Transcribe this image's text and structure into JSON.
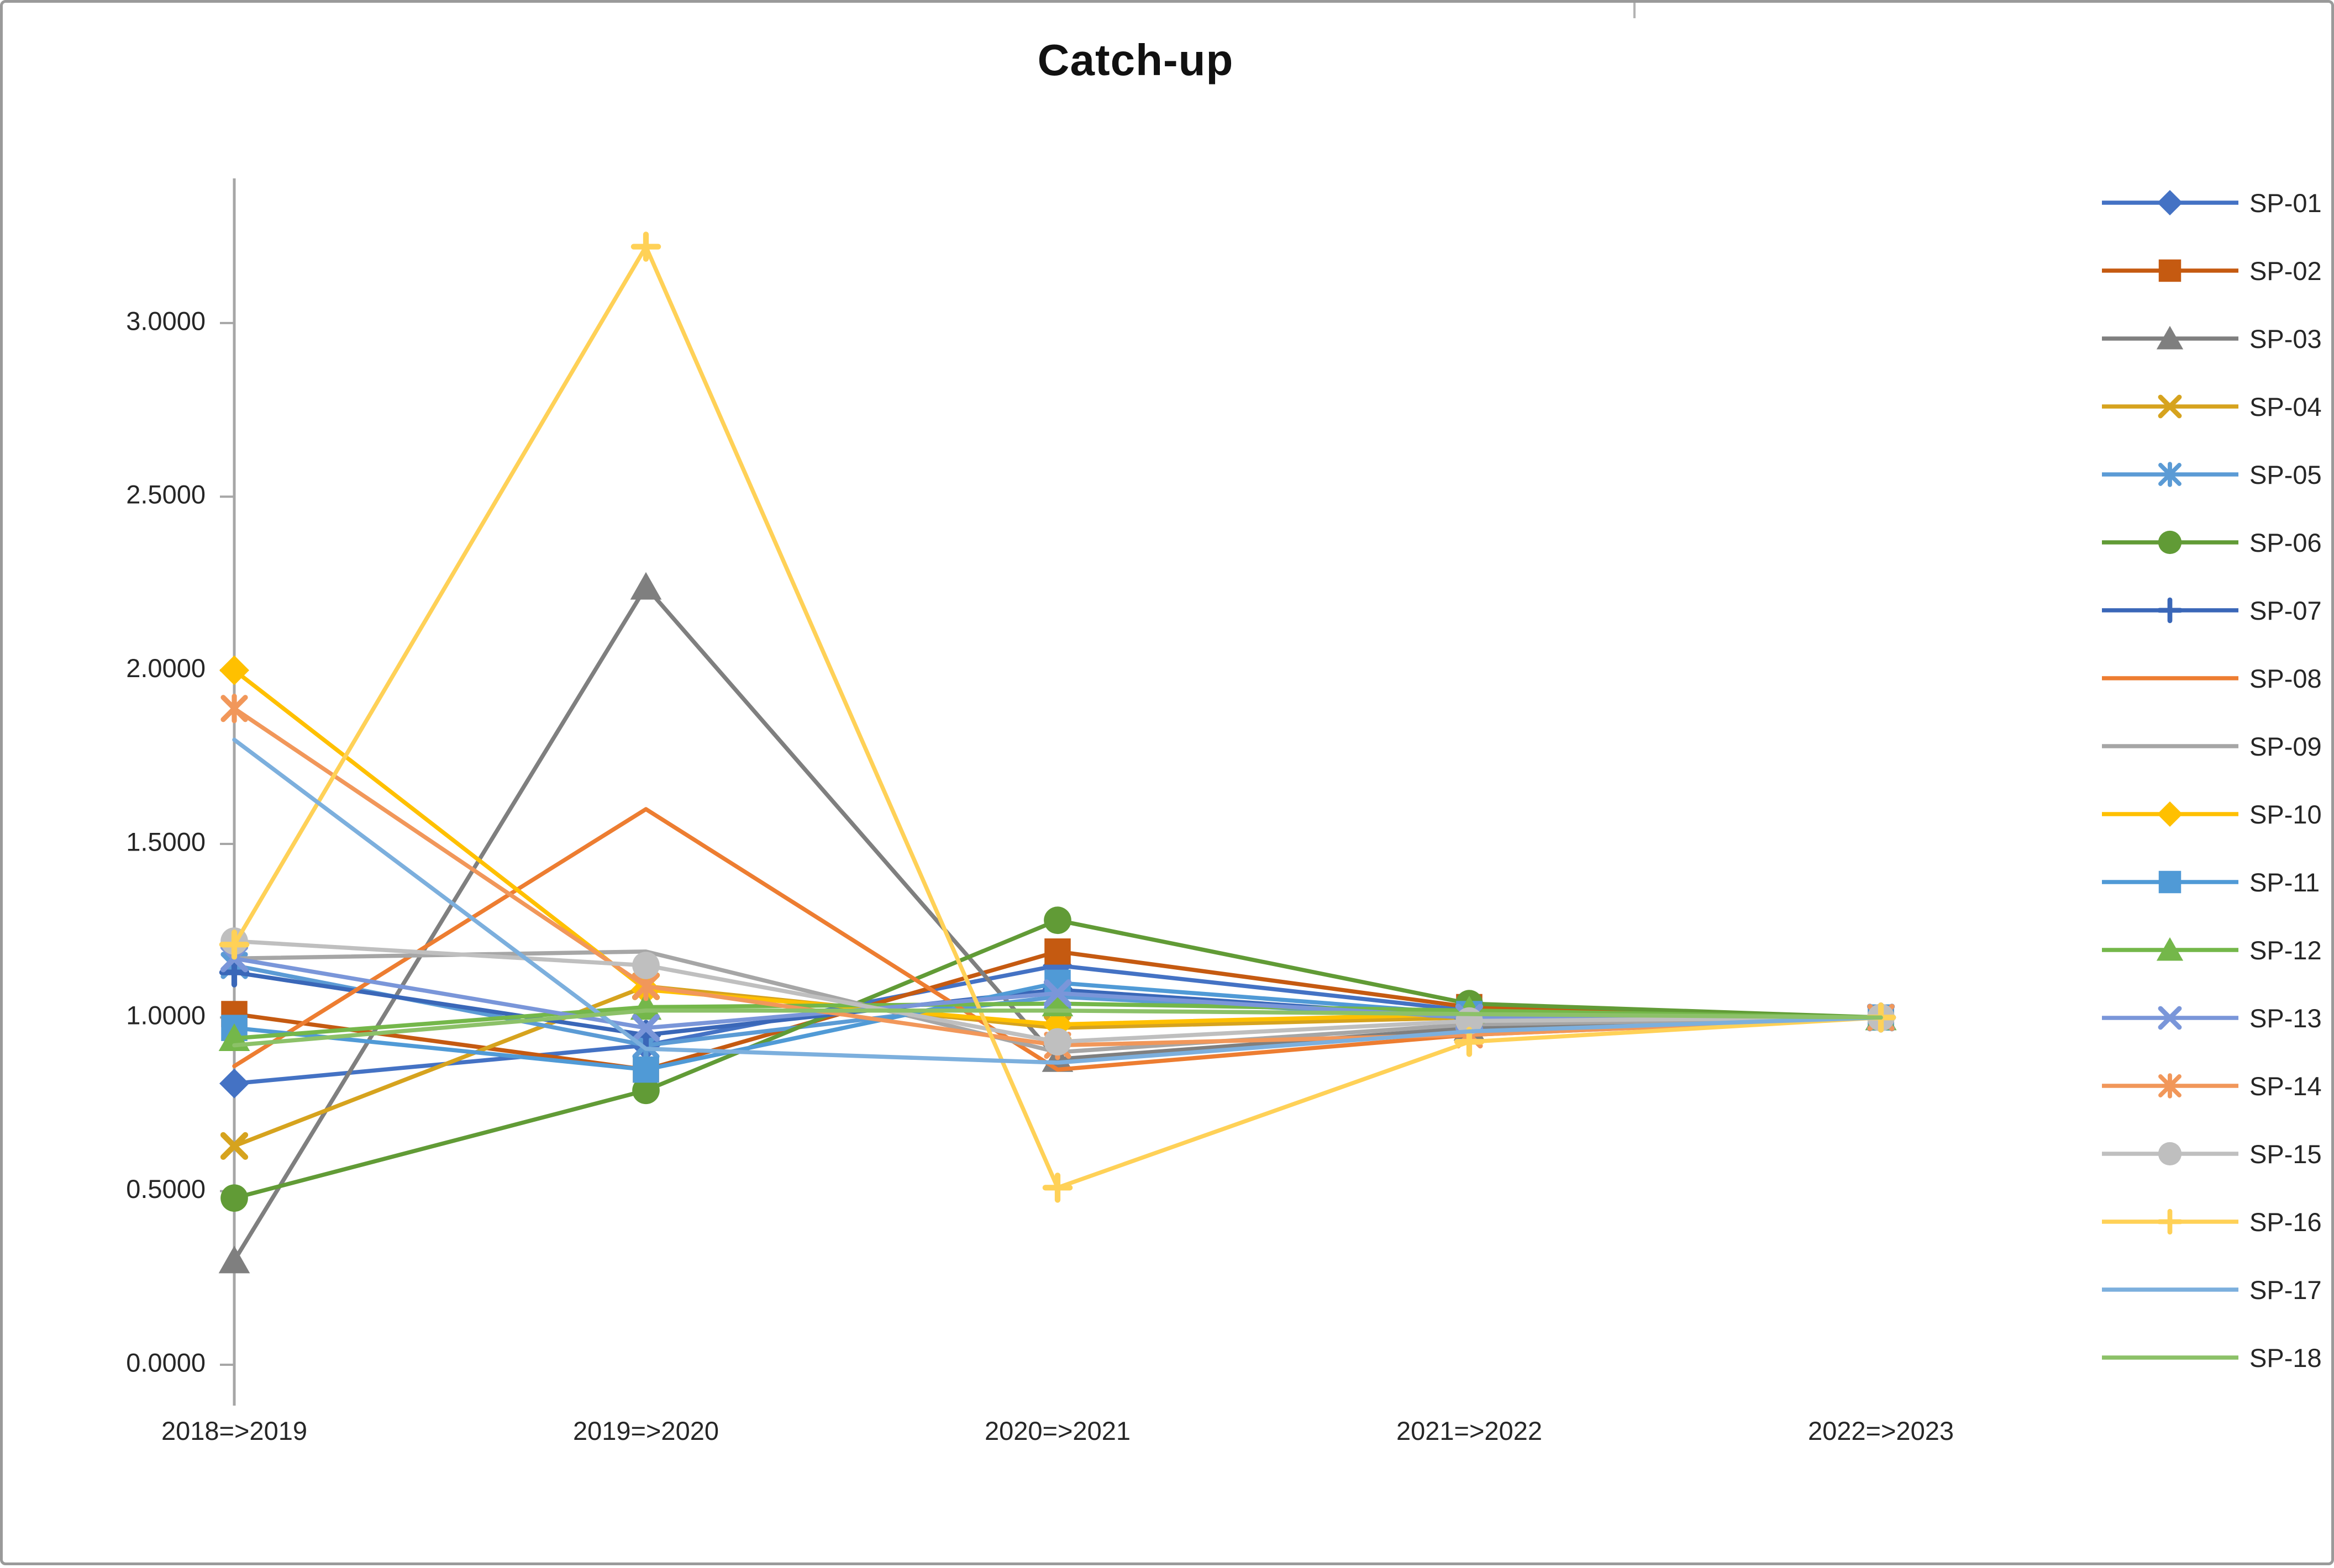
{
  "title": "Catch-up",
  "chart_data": {
    "type": "line",
    "title": "Catch-up",
    "xlabel": "",
    "ylabel": "",
    "categories": [
      "2018=>2019",
      "2019=>2020",
      "2020=>2021",
      "2021=>2022",
      "2022=>2023"
    ],
    "y_tick_labels": [
      "0.0000",
      "0.5000",
      "1.0000",
      "1.5000",
      "2.0000",
      "2.5000",
      "3.0000"
    ],
    "y_tick_values": [
      0,
      0.5,
      1.0,
      1.5,
      2.0,
      2.5,
      3.0
    ],
    "ylim": [
      0,
      3.4
    ],
    "grid": false,
    "legend_position": "right",
    "axis_color": "#a6a6a6",
    "text_color": "#262626",
    "series": [
      {
        "name": "SP-01",
        "color": "#4472C4",
        "marker": "diamond",
        "values": [
          0.81,
          0.92,
          1.15,
          1.02,
          1.0
        ]
      },
      {
        "name": "SP-02",
        "color": "#C55A11",
        "marker": "square",
        "values": [
          1.01,
          0.85,
          1.19,
          1.03,
          1.0
        ]
      },
      {
        "name": "SP-03",
        "color": "#7F7F7F",
        "marker": "triangle",
        "values": [
          0.3,
          2.24,
          0.88,
          0.97,
          1.0
        ]
      },
      {
        "name": "SP-04",
        "color": "#D6A31E",
        "marker": "x",
        "values": [
          0.63,
          1.09,
          0.97,
          1.0,
          1.0
        ]
      },
      {
        "name": "SP-05",
        "color": "#5B9BD5",
        "marker": "asterisk",
        "values": [
          1.15,
          0.92,
          1.06,
          1.0,
          1.0
        ]
      },
      {
        "name": "SP-06",
        "color": "#619B36",
        "marker": "circle",
        "values": [
          0.48,
          0.79,
          1.28,
          1.04,
          1.0
        ]
      },
      {
        "name": "SP-07",
        "color": "#3A67B8",
        "marker": "plus",
        "values": [
          1.13,
          0.95,
          1.08,
          1.0,
          1.0
        ]
      },
      {
        "name": "SP-08",
        "color": "#ED7D31",
        "marker": "none",
        "values": [
          0.86,
          1.6,
          0.85,
          0.95,
          1.0
        ]
      },
      {
        "name": "SP-09",
        "color": "#A6A6A6",
        "marker": "none",
        "values": [
          1.17,
          1.19,
          0.9,
          0.98,
          1.0
        ]
      },
      {
        "name": "SP-10",
        "color": "#FFC000",
        "marker": "diamond",
        "values": [
          2.0,
          1.08,
          0.98,
          1.01,
          1.0
        ]
      },
      {
        "name": "SP-11",
        "color": "#509AD6",
        "marker": "square",
        "values": [
          0.97,
          0.85,
          1.1,
          1.01,
          1.0
        ]
      },
      {
        "name": "SP-12",
        "color": "#74B74A",
        "marker": "triangle",
        "values": [
          0.94,
          1.03,
          1.04,
          1.02,
          1.0
        ]
      },
      {
        "name": "SP-13",
        "color": "#7A96D9",
        "marker": "x",
        "values": [
          1.17,
          0.97,
          1.07,
          1.0,
          1.0
        ]
      },
      {
        "name": "SP-14",
        "color": "#F1975A",
        "marker": "asterisk",
        "values": [
          1.89,
          1.09,
          0.92,
          0.95,
          1.0
        ]
      },
      {
        "name": "SP-15",
        "color": "#BFBFBF",
        "marker": "circle",
        "values": [
          1.22,
          1.15,
          0.93,
          0.99,
          1.0
        ]
      },
      {
        "name": "SP-16",
        "color": "#FFD157",
        "marker": "plus",
        "values": [
          1.21,
          3.22,
          0.51,
          0.93,
          1.0
        ]
      },
      {
        "name": "SP-17",
        "color": "#7CAFDD",
        "marker": "none",
        "values": [
          1.8,
          0.91,
          0.87,
          0.96,
          1.0
        ]
      },
      {
        "name": "SP-18",
        "color": "#8CC168",
        "marker": "none",
        "values": [
          0.92,
          1.02,
          1.02,
          1.01,
          1.0
        ]
      }
    ]
  }
}
